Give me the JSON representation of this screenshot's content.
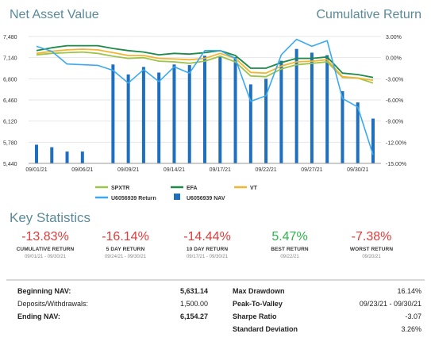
{
  "header": {
    "left_title": "Net Asset Value",
    "right_title": "Cumulative Return"
  },
  "chart_data": {
    "type": "bar+line",
    "x_ticks": [
      "09/01/21",
      "09/06/21",
      "09/09/21",
      "09/14/21",
      "09/17/21",
      "09/22/21",
      "09/27/21",
      "09/30/21"
    ],
    "left_axis_ticks": [
      "7,480",
      "7,140",
      "6,800",
      "6,460",
      "6,120",
      "5,780",
      "5,440"
    ],
    "right_axis_ticks": [
      "3.00%",
      "0.00%",
      "-3.00%",
      "-6.00%",
      "-9.00%",
      "-12.00%",
      "-15.00%"
    ],
    "ylim_left": [
      5440,
      7480
    ],
    "ylim_right": [
      -15,
      3
    ],
    "grid": true,
    "legend_position": "bottom",
    "bars": {
      "name": "U6056939 NAV",
      "color": "#1f6fbf",
      "values": [
        5740,
        5700,
        5630,
        5630,
        null,
        7030,
        6870,
        6990,
        6900,
        7030,
        7020,
        7170,
        7170,
        7150,
        6710,
        6800,
        7090,
        7280,
        7220,
        7180,
        6600,
        6420,
        6160
      ]
    },
    "series": [
      {
        "name": "SPXTR",
        "color": "#9dc34a",
        "values": [
          0.4,
          0.6,
          0.7,
          0.8,
          0.6,
          0.2,
          -0.1,
          0.0,
          -0.5,
          -0.6,
          -0.8,
          -0.5,
          0.2,
          -0.6,
          -2.6,
          -2.7,
          -1.6,
          -1.0,
          -0.8,
          -0.6,
          -2.8,
          -2.9,
          -3.6
        ]
      },
      {
        "name": "EFA",
        "color": "#1d8a4a",
        "values": [
          1.0,
          1.4,
          1.7,
          1.7,
          1.7,
          1.3,
          1.0,
          0.8,
          0.4,
          0.6,
          0.5,
          0.7,
          1.0,
          0.3,
          -1.5,
          -1.5,
          -0.7,
          -0.1,
          -0.1,
          0.1,
          -2.2,
          -2.4,
          -2.8
        ]
      },
      {
        "name": "VT",
        "color": "#f2b530",
        "values": [
          0.6,
          0.9,
          1.1,
          1.2,
          1.1,
          0.7,
          0.3,
          0.3,
          -0.1,
          -0.2,
          -0.3,
          -0.1,
          0.6,
          -0.1,
          -2.1,
          -2.2,
          -1.2,
          -0.6,
          -0.5,
          -0.3,
          -2.7,
          -2.9,
          -3.2
        ]
      },
      {
        "name": "U6056939 Return",
        "color": "#3aaaf0",
        "values": [
          1.6,
          0.9,
          -0.9,
          -1.0,
          -1.1,
          -1.8,
          -3.6,
          -1.7,
          -3.4,
          -1.3,
          -2.2,
          1.0,
          1.0,
          -0.1,
          -6.2,
          -5.4,
          0.4,
          2.6,
          1.6,
          2.4,
          -5.8,
          -7.0,
          -13.8
        ]
      }
    ]
  },
  "key_statistics": {
    "title": "Key Statistics",
    "items": [
      {
        "value": "-13.83%",
        "label": "CUMULATIVE RETURN",
        "dates": "09/01/21 - 09/30/21",
        "positive": false
      },
      {
        "value": "-16.14%",
        "label": "5 DAY RETURN",
        "dates": "09/24/21 - 09/30/21",
        "positive": false
      },
      {
        "value": "-14.44%",
        "label": "10 DAY RETURN",
        "dates": "09/17/21 - 09/30/21",
        "positive": false
      },
      {
        "value": "5.47%",
        "label": "BEST RETURN",
        "dates": "09/22/21",
        "positive": true
      },
      {
        "value": "-7.38%",
        "label": "WORST RETURN",
        "dates": "09/20/21",
        "positive": false
      }
    ]
  },
  "summary": {
    "beginning_nav_label": "Beginning NAV:",
    "beginning_nav_value": "5,631.14",
    "deposits_label": "Deposits/Withdrawals:",
    "deposits_value": "1,500.00",
    "ending_nav_label": "Ending NAV:",
    "ending_nav_value": "6,154.27",
    "max_drawdown_label": "Max Drawdown",
    "max_drawdown_value": "16.14%",
    "peak_to_valley_label": "Peak-To-Valley",
    "peak_to_valley_value": "09/23/21 - 09/30/21",
    "sharpe_label": "Sharpe Ratio",
    "sharpe_value": "-3.07",
    "std_dev_label": "Standard Deviation",
    "std_dev_value": "3.26%"
  }
}
